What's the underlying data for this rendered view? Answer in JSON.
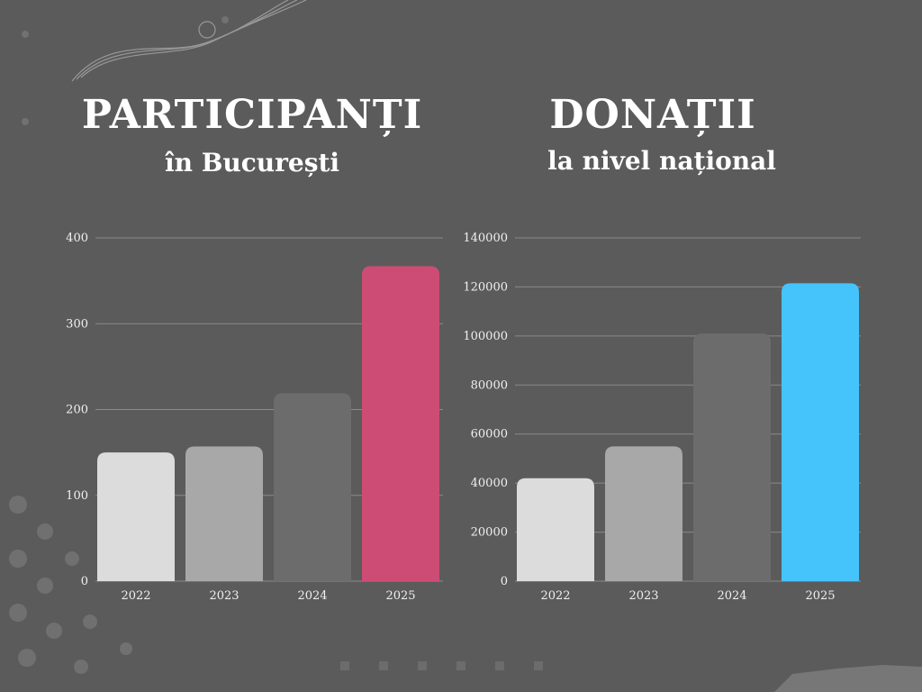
{
  "colors": {
    "background": "#5b5b5b",
    "grid": "#8a8a8a",
    "text": "#ffffff",
    "bar_2022": "#dcdcdc",
    "bar_2023": "#a8a8a8",
    "bar_2024": "#6c6c6c",
    "bar_participanti_2025": "#cc4c76",
    "bar_donatii_2025": "#45c3fb"
  },
  "chart_data": [
    {
      "type": "bar",
      "title": "PARTICIPANȚI",
      "subtitle": "în București",
      "categories": [
        "2022",
        "2023",
        "2024",
        "2025"
      ],
      "values": [
        150,
        157,
        219,
        367
      ],
      "ylim": [
        0,
        400
      ],
      "yticks": [
        0,
        100,
        200,
        300,
        400
      ],
      "xlabel": "",
      "ylabel": "",
      "grid": true,
      "legend": "none"
    },
    {
      "type": "bar",
      "title": "DONAȚII",
      "subtitle": "la nivel național",
      "categories": [
        "2022",
        "2023",
        "2024",
        "2025"
      ],
      "values": [
        42000,
        55000,
        101000,
        121500
      ],
      "ylim": [
        0,
        140000
      ],
      "yticks": [
        0,
        20000,
        40000,
        60000,
        80000,
        100000,
        120000,
        140000
      ],
      "xlabel": "",
      "ylabel": "",
      "grid": true,
      "legend": "none"
    }
  ]
}
